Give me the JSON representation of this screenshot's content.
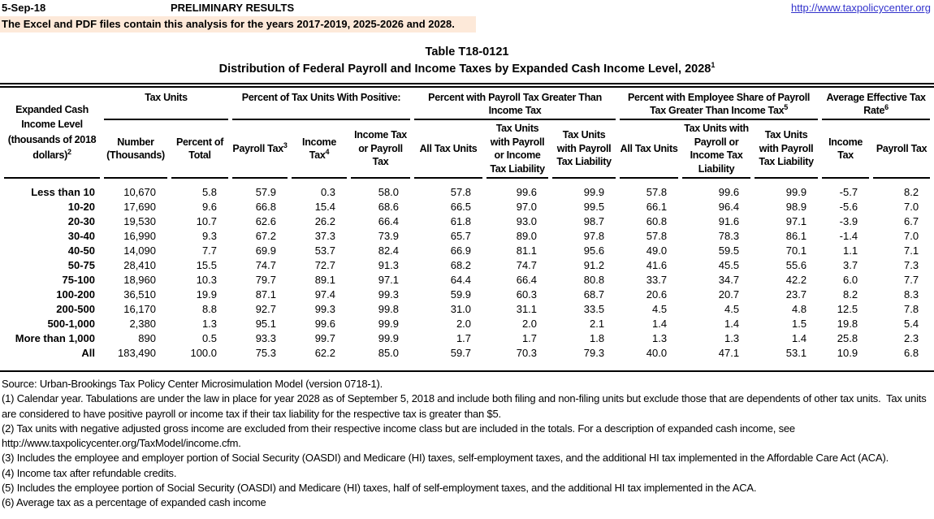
{
  "header": {
    "date": "5-Sep-18",
    "preliminary": "PRELIMINARY RESULTS",
    "url": "http://www.taxpolicycenter.org",
    "note": "The Excel and PDF files contain this analysis for the years 2017-2019, 2025-2026 and 2028."
  },
  "title": {
    "table_number": "Table T18-0121",
    "subtitle": "Distribution of Federal Payroll and Income Taxes by Expanded Cash Income Level, 2028",
    "subtitle_sup": "1"
  },
  "colors": {
    "note_highlight": "#FDE9D9",
    "link_blue": "#3333CC"
  },
  "table": {
    "row_header": {
      "text": "Expanded Cash Income Level (thousands of 2018 dollars)",
      "sup": "2"
    },
    "groups": [
      {
        "label": "Tax Units",
        "span": 2
      },
      {
        "label": "Percent of Tax Units With Positive:",
        "span": 3
      },
      {
        "label": "Percent with Payroll Tax Greater Than Income Tax",
        "span": 3
      },
      {
        "label": "Percent with Employee Share of Payroll Tax Greater Than Income Tax",
        "sup": "5",
        "span": 3
      },
      {
        "label": "Average Effective Tax Rate",
        "sup": "6",
        "span": 2
      }
    ],
    "columns": [
      {
        "text": "Number (Thousands)"
      },
      {
        "text": "Percent of Total"
      },
      {
        "text": "Payroll Tax",
        "sup": "3"
      },
      {
        "text": "Income Tax",
        "sup": "4"
      },
      {
        "text": "Income Tax or Payroll Tax"
      },
      {
        "text": "All Tax Units"
      },
      {
        "text": "Tax Units with Payroll or Income Tax Liability"
      },
      {
        "text": "Tax Units with Payroll Tax Liability"
      },
      {
        "text": "All Tax Units"
      },
      {
        "text": "Tax Units with Payroll or Income Tax Liability"
      },
      {
        "text": "Tax Units with Payroll Tax Liability"
      },
      {
        "text": "Income Tax"
      },
      {
        "text": "Payroll Tax"
      }
    ],
    "rows": [
      {
        "label": "Less than 10",
        "values": [
          "10,670",
          "5.8",
          "57.9",
          "0.3",
          "58.0",
          "57.8",
          "99.6",
          "99.9",
          "57.8",
          "99.6",
          "99.9",
          "-5.7",
          "8.2"
        ]
      },
      {
        "label": "10-20",
        "values": [
          "17,690",
          "9.6",
          "66.8",
          "15.4",
          "68.6",
          "66.5",
          "97.0",
          "99.5",
          "66.1",
          "96.4",
          "98.9",
          "-5.6",
          "7.0"
        ]
      },
      {
        "label": "20-30",
        "values": [
          "19,530",
          "10.7",
          "62.6",
          "26.2",
          "66.4",
          "61.8",
          "93.0",
          "98.7",
          "60.8",
          "91.6",
          "97.1",
          "-3.9",
          "6.7"
        ]
      },
      {
        "label": "30-40",
        "values": [
          "16,990",
          "9.3",
          "67.2",
          "37.3",
          "73.9",
          "65.7",
          "89.0",
          "97.8",
          "57.8",
          "78.3",
          "86.1",
          "-1.4",
          "7.0"
        ]
      },
      {
        "label": "40-50",
        "values": [
          "14,090",
          "7.7",
          "69.9",
          "53.7",
          "82.4",
          "66.9",
          "81.1",
          "95.6",
          "49.0",
          "59.5",
          "70.1",
          "1.1",
          "7.1"
        ]
      },
      {
        "label": "50-75",
        "values": [
          "28,410",
          "15.5",
          "74.7",
          "72.7",
          "91.3",
          "68.2",
          "74.7",
          "91.2",
          "41.6",
          "45.5",
          "55.6",
          "3.7",
          "7.3"
        ]
      },
      {
        "label": "75-100",
        "values": [
          "18,960",
          "10.3",
          "79.7",
          "89.1",
          "97.1",
          "64.4",
          "66.4",
          "80.8",
          "33.7",
          "34.7",
          "42.2",
          "6.0",
          "7.7"
        ]
      },
      {
        "label": "100-200",
        "values": [
          "36,510",
          "19.9",
          "87.1",
          "97.4",
          "99.3",
          "59.9",
          "60.3",
          "68.7",
          "20.6",
          "20.7",
          "23.7",
          "8.2",
          "8.3"
        ]
      },
      {
        "label": "200-500",
        "values": [
          "16,170",
          "8.8",
          "92.7",
          "99.3",
          "99.8",
          "31.0",
          "31.1",
          "33.5",
          "4.5",
          "4.5",
          "4.8",
          "12.5",
          "7.8"
        ]
      },
      {
        "label": "500-1,000",
        "values": [
          "2,380",
          "1.3",
          "95.1",
          "99.6",
          "99.9",
          "2.0",
          "2.0",
          "2.1",
          "1.4",
          "1.4",
          "1.5",
          "19.8",
          "5.4"
        ]
      },
      {
        "label": "More than 1,000",
        "values": [
          "890",
          "0.5",
          "93.3",
          "99.7",
          "99.9",
          "1.7",
          "1.7",
          "1.8",
          "1.3",
          "1.3",
          "1.4",
          "25.8",
          "2.3"
        ]
      },
      {
        "label": "All",
        "values": [
          "183,490",
          "100.0",
          "75.3",
          "62.2",
          "85.0",
          "59.7",
          "70.3",
          "79.3",
          "40.0",
          "47.1",
          "53.1",
          "10.9",
          "6.8"
        ]
      }
    ]
  },
  "footnotes": [
    "Source: Urban-Brookings Tax Policy Center Microsimulation Model (version 0718-1).",
    "(1) Calendar year. Tabulations are under the law in place for year 2028 as of September 5, 2018 and include both filing and non-filing units but exclude those that are dependents of other tax units.  Tax units are considered to have positive payroll or income tax if their tax liability for the respective tax is greater than $5.",
    "(2) Tax units with negative adjusted gross income are excluded from their respective income class but are included in the totals. For a description of expanded cash income, see http://www.taxpolicycenter.org/TaxModel/income.cfm.",
    "(3) Includes the employee and employer portion of Social Security (OASDI) and Medicare (HI) taxes, self-employment taxes, and the additional HI tax implemented in the Affordable Care Act (ACA).",
    "(4) Income tax after refundable credits.",
    "(5) Includes the employee portion of Social Security (OASDI) and Medicare (HI) taxes, half of self-employment taxes, and the additional HI tax implemented in the ACA.",
    "(6) Average tax as a percentage of expanded cash income"
  ]
}
